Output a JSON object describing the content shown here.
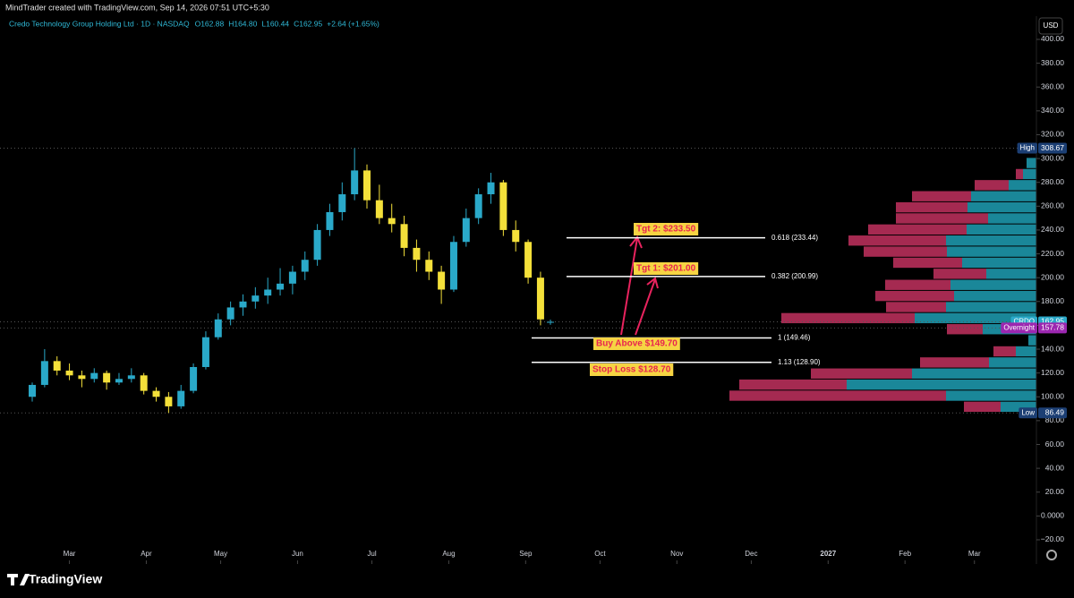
{
  "header": {
    "credit": "MindTrader created with TradingView.com, Sep 14, 2026 07:51 UTC+5:30",
    "symbol": "Credo Technology Group Holding Ltd · 1D · NASDAQ",
    "ohlc_legend": [
      "O162.88",
      "H164.80",
      "L160.44",
      "C162.95",
      "+2.64 (+1.65%)"
    ],
    "currency": "USD"
  },
  "footer": {
    "brand": "TradingView"
  },
  "chart_data": {
    "type": "candlestick",
    "up_color": "#2aa9c9",
    "down_color": "#f4e03a",
    "x": [
      44,
      49,
      54,
      59,
      64,
      69,
      74,
      79,
      84,
      89,
      94,
      99,
      104,
      109,
      114,
      119,
      124,
      129,
      134,
      139,
      144,
      149,
      154,
      159,
      164,
      169,
      174,
      179,
      184,
      189,
      194,
      199,
      204,
      209,
      214,
      219,
      224,
      229,
      234,
      239,
      244,
      249,
      253
    ],
    "ohlc": [
      [
        100,
        112,
        96,
        110
      ],
      [
        110,
        140,
        108,
        130
      ],
      [
        130,
        134,
        118,
        122
      ],
      [
        122,
        128,
        114,
        118
      ],
      [
        118,
        122,
        108,
        115
      ],
      [
        115,
        124,
        112,
        120
      ],
      [
        120,
        122,
        106,
        112
      ],
      [
        112,
        120,
        110,
        115
      ],
      [
        115,
        124,
        112,
        118
      ],
      [
        118,
        120,
        102,
        105
      ],
      [
        105,
        108,
        96,
        100
      ],
      [
        100,
        104,
        86.49,
        92
      ],
      [
        92,
        110,
        90,
        105
      ],
      [
        105,
        128,
        103,
        125
      ],
      [
        125,
        155,
        123,
        150
      ],
      [
        150,
        170,
        148,
        165
      ],
      [
        165,
        180,
        160,
        175
      ],
      [
        175,
        186,
        168,
        180
      ],
      [
        180,
        192,
        174,
        185
      ],
      [
        185,
        200,
        178,
        190
      ],
      [
        190,
        208,
        185,
        195
      ],
      [
        195,
        210,
        186,
        205
      ],
      [
        205,
        222,
        198,
        215
      ],
      [
        215,
        245,
        210,
        240
      ],
      [
        240,
        262,
        235,
        255
      ],
      [
        255,
        280,
        248,
        270
      ],
      [
        270,
        308.67,
        265,
        290
      ],
      [
        290,
        295,
        258,
        265
      ],
      [
        265,
        278,
        245,
        250
      ],
      [
        250,
        262,
        238,
        245
      ],
      [
        245,
        252,
        218,
        225
      ],
      [
        225,
        232,
        205,
        215
      ],
      [
        215,
        222,
        198,
        205
      ],
      [
        205,
        210,
        178,
        190
      ],
      [
        190,
        235,
        188,
        230
      ],
      [
        230,
        258,
        226,
        250
      ],
      [
        250,
        275,
        245,
        270
      ],
      [
        270,
        288,
        262,
        280
      ],
      [
        280,
        282,
        235,
        240
      ],
      [
        240,
        248,
        222,
        230
      ],
      [
        230,
        232,
        195,
        200
      ],
      [
        200,
        205,
        160,
        165
      ],
      [
        162.88,
        164.8,
        160.44,
        162.95
      ]
    ],
    "xlim": [
      31,
      449
    ],
    "xticks": [
      {
        "value": 59,
        "label": "Mar"
      },
      {
        "value": 90,
        "label": "Apr"
      },
      {
        "value": 120,
        "label": "May"
      },
      {
        "value": 151,
        "label": "Jun"
      },
      {
        "value": 181,
        "label": "Jul"
      },
      {
        "value": 212,
        "label": "Aug"
      },
      {
        "value": 243,
        "label": "Sep"
      },
      {
        "value": 273,
        "label": "Oct"
      },
      {
        "value": 304,
        "label": "Nov"
      },
      {
        "value": 334,
        "label": "Dec"
      },
      {
        "value": 365,
        "label": "2027"
      },
      {
        "value": 396,
        "label": "Feb"
      },
      {
        "value": 424,
        "label": "Mar"
      }
    ],
    "ylim": [
      -38.8,
      404.5
    ],
    "yticks": [
      {
        "value": 400,
        "label": "400.00"
      },
      {
        "value": 380,
        "label": "380.00"
      },
      {
        "value": 360,
        "label": "360.00"
      },
      {
        "value": 340,
        "label": "340.00"
      },
      {
        "value": 320,
        "label": "320.00"
      },
      {
        "value": 300,
        "label": "300.00"
      },
      {
        "value": 280,
        "label": "280.00"
      },
      {
        "value": 260,
        "label": "260.00"
      },
      {
        "value": 240,
        "label": "240.00"
      },
      {
        "value": 220,
        "label": "220.00"
      },
      {
        "value": 200,
        "label": "200.00"
      },
      {
        "value": 180,
        "label": "180.00"
      },
      {
        "value": 160,
        "label": "160.00"
      },
      {
        "value": 140,
        "label": "140.00"
      },
      {
        "value": 120,
        "label": "120.00"
      },
      {
        "value": 100,
        "label": "100.00"
      },
      {
        "value": 80,
        "label": "80.00"
      },
      {
        "value": 60,
        "label": "60.00"
      },
      {
        "value": 40,
        "label": "40.00"
      },
      {
        "value": 20,
        "label": "20.00"
      },
      {
        "value": 0,
        "label": "0.0000"
      },
      {
        "value": -20,
        "label": "−20.00"
      }
    ],
    "price_labels": [
      {
        "name": "High",
        "value": 308.67,
        "color": "#1c3f74"
      },
      {
        "name": "CRDO",
        "value": 162.95,
        "color": "#2aa9c9"
      },
      {
        "name": "Overnight",
        "value": 157.78,
        "color": "#9c27b0"
      },
      {
        "name": "Low",
        "value": 86.49,
        "color": "#1c3f74"
      }
    ],
    "levels": [
      {
        "value": 233.44,
        "label": "0.618 (233.44)"
      },
      {
        "value": 200.99,
        "label": "0.382 (200.99)"
      },
      {
        "value": 149.46,
        "label": "1 (149.46)"
      },
      {
        "value": 128.9,
        "label": "1.13 (128.90)"
      }
    ],
    "annotations": [
      "Tgt 2: $233.50",
      "Tgt 1: $201.00",
      "Buy Above $149.70",
      "Stop Loss $128.70"
    ],
    "volume_profile": {
      "bins": [
        87,
        96.3,
        105.6,
        114.9,
        124.2,
        133.5,
        142.8,
        152.1,
        161.4,
        170.7,
        180,
        189.3,
        198.6,
        207.9,
        217.2,
        226.5,
        235.8,
        245.1,
        254.4,
        263.7,
        273,
        282.3,
        291.6,
        300.9
      ],
      "up_volume": [
        40,
        101,
        212,
        139,
        53,
        23,
        9,
        60,
        136,
        101,
        92,
        96,
        56,
        83,
        100,
        101,
        78,
        54,
        77,
        73,
        31,
        15,
        11
      ],
      "down_volume": [
        41,
        242,
        120,
        113,
        77,
        25,
        0,
        40,
        149,
        67,
        88,
        73,
        59,
        77,
        93,
        109,
        110,
        103,
        80,
        66,
        38,
        8,
        0
      ],
      "up_color": "#1f9fb4",
      "down_color": "#c2315f"
    }
  }
}
